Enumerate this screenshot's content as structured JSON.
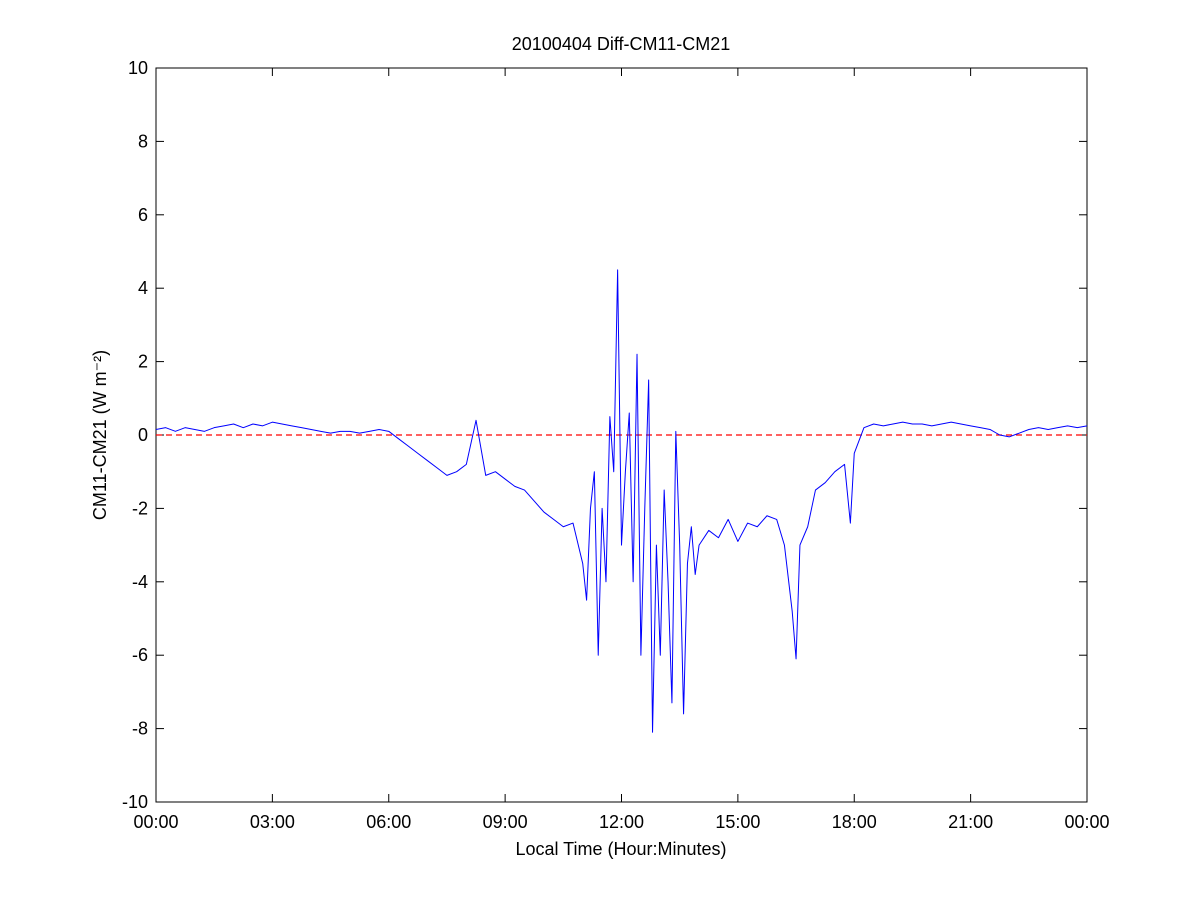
{
  "chart_data": {
    "type": "line",
    "title": "20100404 Diff-CM11-CM21",
    "x_label": "Local Time (Hour:Minutes)",
    "y_label": "CM11-CM21 (W m⁻²)",
    "xlim": [
      0,
      24
    ],
    "xticks": [
      {
        "value": 0,
        "label": "00:00"
      },
      {
        "value": 3,
        "label": "03:00"
      },
      {
        "value": 6,
        "label": "06:00"
      },
      {
        "value": 9,
        "label": "09:00"
      },
      {
        "value": 12,
        "label": "12:00"
      },
      {
        "value": 15,
        "label": "15:00"
      },
      {
        "value": 18,
        "label": "18:00"
      },
      {
        "value": 21,
        "label": "21:00"
      },
      {
        "value": 24,
        "label": "00:00"
      }
    ],
    "ylim": [
      -10,
      10
    ],
    "yticks": [
      -10,
      -8,
      -6,
      -4,
      -2,
      0,
      2,
      4,
      6,
      8,
      10
    ],
    "grid": false,
    "reference_line": {
      "value": 0,
      "color": "#ff0000",
      "style": "dashed"
    },
    "series": [
      {
        "color": "#0000ff",
        "x": [
          0,
          0.25,
          0.5,
          0.75,
          1,
          1.25,
          1.5,
          1.75,
          2,
          2.25,
          2.5,
          2.75,
          3,
          3.25,
          3.5,
          3.75,
          4,
          4.25,
          4.5,
          4.75,
          5,
          5.25,
          5.5,
          5.75,
          6,
          6.25,
          6.5,
          6.75,
          7,
          7.25,
          7.5,
          7.75,
          8,
          8.25,
          8.5,
          8.75,
          9,
          9.25,
          9.5,
          9.75,
          10,
          10.25,
          10.5,
          10.75,
          11,
          11.1,
          11.2,
          11.3,
          11.4,
          11.5,
          11.6,
          11.7,
          11.8,
          11.9,
          12,
          12.1,
          12.2,
          12.3,
          12.4,
          12.5,
          12.6,
          12.7,
          12.8,
          12.9,
          13,
          13.1,
          13.2,
          13.3,
          13.4,
          13.5,
          13.6,
          13.7,
          13.8,
          13.9,
          14,
          14.25,
          14.5,
          14.75,
          15,
          15.25,
          15.5,
          15.75,
          16,
          16.2,
          16.4,
          16.5,
          16.6,
          16.8,
          17,
          17.25,
          17.5,
          17.75,
          17.9,
          18,
          18.25,
          18.5,
          18.75,
          19,
          19.25,
          19.5,
          19.75,
          20,
          20.25,
          20.5,
          20.75,
          21,
          21.25,
          21.5,
          21.75,
          22,
          22.25,
          22.5,
          22.75,
          23,
          23.25,
          23.5,
          23.75,
          24
        ],
        "values": [
          0.15,
          0.2,
          0.1,
          0.2,
          0.15,
          0.1,
          0.2,
          0.25,
          0.3,
          0.2,
          0.3,
          0.25,
          0.35,
          0.3,
          0.25,
          0.2,
          0.15,
          0.1,
          0.05,
          0.1,
          0.1,
          0.05,
          0.1,
          0.15,
          0.1,
          -0.1,
          -0.3,
          -0.5,
          -0.7,
          -0.9,
          -1.1,
          -1.0,
          -0.8,
          0.4,
          -1.1,
          -1.0,
          -1.2,
          -1.4,
          -1.5,
          -1.8,
          -2.1,
          -2.3,
          -2.5,
          -2.4,
          -3.5,
          -4.5,
          -2,
          -1,
          -6,
          -2,
          -4,
          0.5,
          -1,
          4.5,
          -3,
          -1,
          0.6,
          -4,
          2.2,
          -6,
          -2,
          1.5,
          -8.1,
          -3,
          -6,
          -1.5,
          -4,
          -7.3,
          0.1,
          -3,
          -7.6,
          -3.5,
          -2.5,
          -3.8,
          -3,
          -2.6,
          -2.8,
          -2.3,
          -2.9,
          -2.4,
          -2.5,
          -2.2,
          -2.3,
          -3,
          -4.8,
          -6.1,
          -3,
          -2.5,
          -1.5,
          -1.3,
          -1.0,
          -0.8,
          -2.4,
          -0.5,
          0.2,
          0.3,
          0.25,
          0.3,
          0.35,
          0.3,
          0.3,
          0.25,
          0.3,
          0.35,
          0.3,
          0.25,
          0.2,
          0.15,
          0.0,
          -0.05,
          0.05,
          0.15,
          0.2,
          0.15,
          0.2,
          0.25,
          0.2,
          0.25
        ]
      }
    ]
  }
}
